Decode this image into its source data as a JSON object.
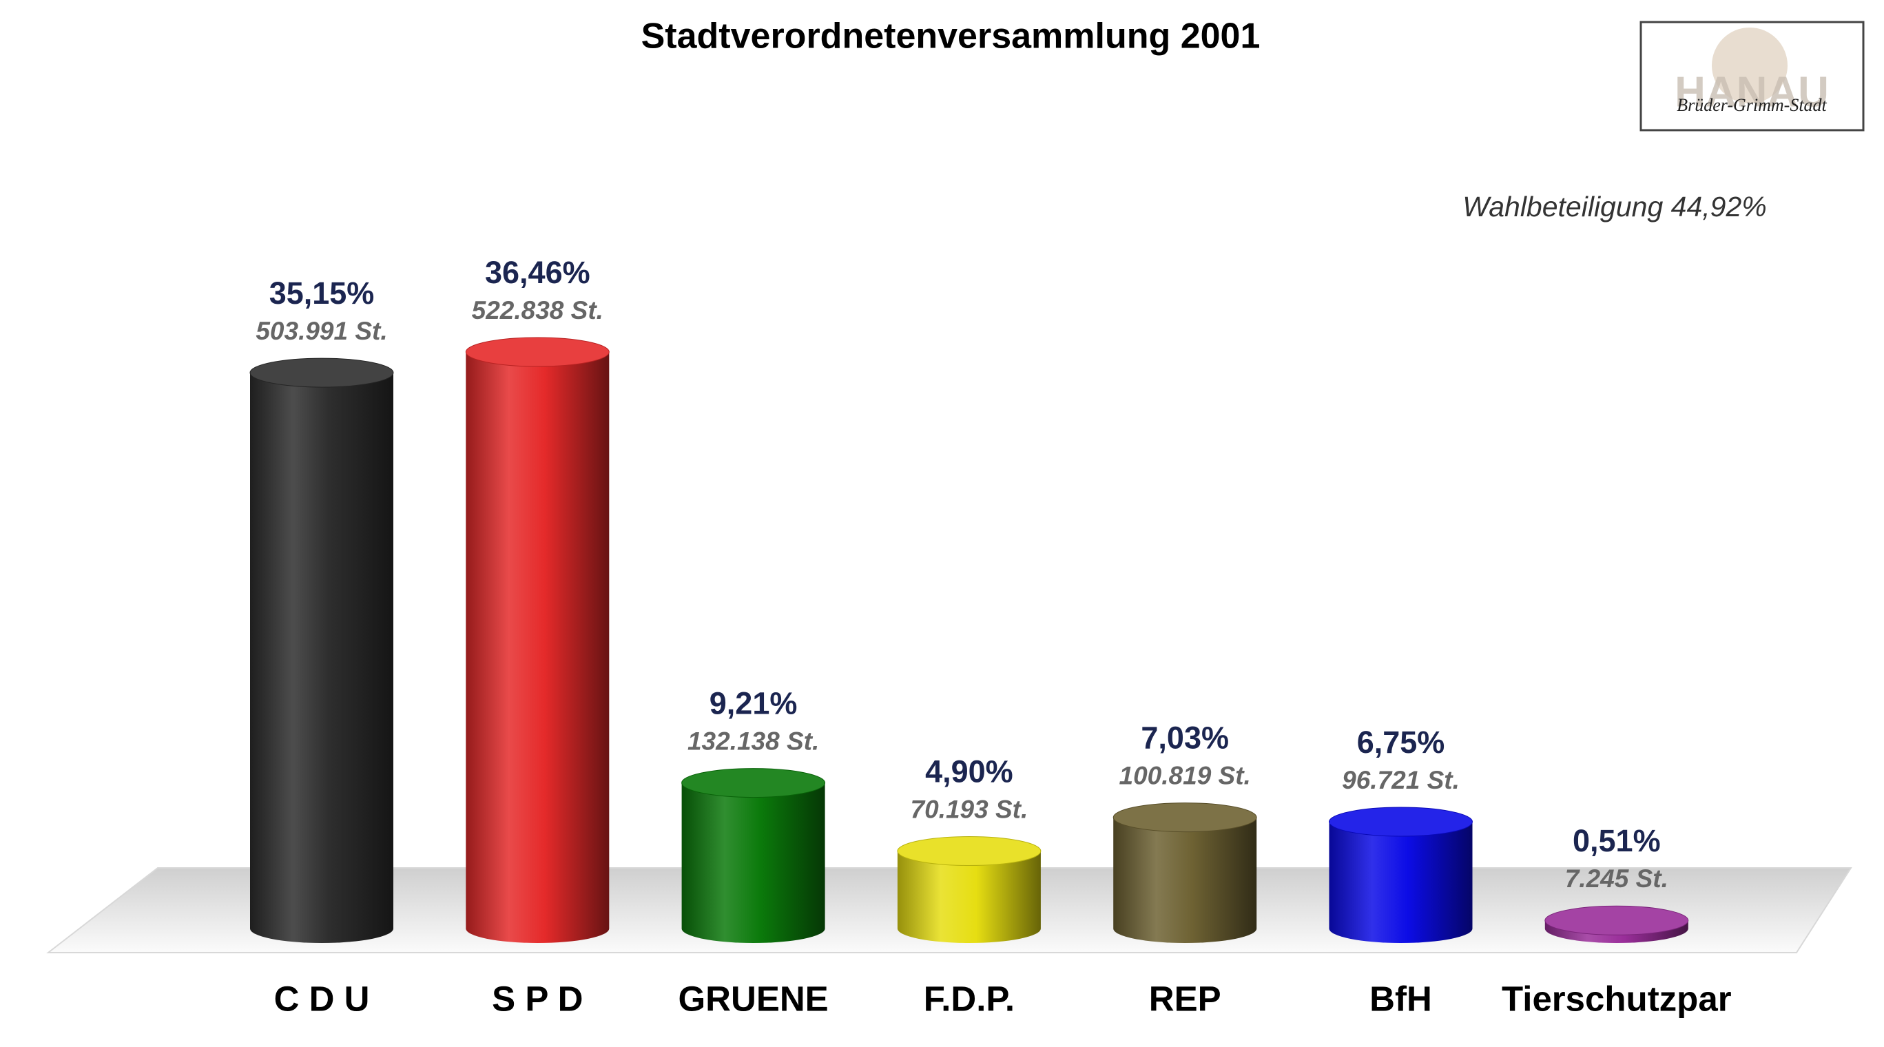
{
  "chart_data": {
    "type": "bar",
    "title": "Stadtverordnetenversammlung 2001",
    "annotation": "Wahlbeteiligung 44,92%",
    "categories": [
      "C D U",
      "S P D",
      "GRUENE",
      "F.D.P.",
      "REP",
      "BfH",
      "Tierschutzpar"
    ],
    "values": [
      35.15,
      36.46,
      9.21,
      4.9,
      7.03,
      6.75,
      0.51
    ],
    "value_labels": [
      "35,15%",
      "36,46%",
      "9,21%",
      "4,90%",
      "7,03%",
      "6,75%",
      "0,51%"
    ],
    "vote_labels": [
      "503.991 St.",
      "522.838 St.",
      "132.138 St.",
      "70.193 St.",
      "100.819 St.",
      "96.721 St.",
      "7.245 St."
    ],
    "colors": [
      "#2e2e2e",
      "#e52a2a",
      "#0b7a0b",
      "#e6de12",
      "#6e6233",
      "#0c0ce6",
      "#9a2e9a"
    ]
  },
  "logo": {
    "title": "HANAU",
    "subtitle": "Brüder-Grimm-Stadt"
  }
}
